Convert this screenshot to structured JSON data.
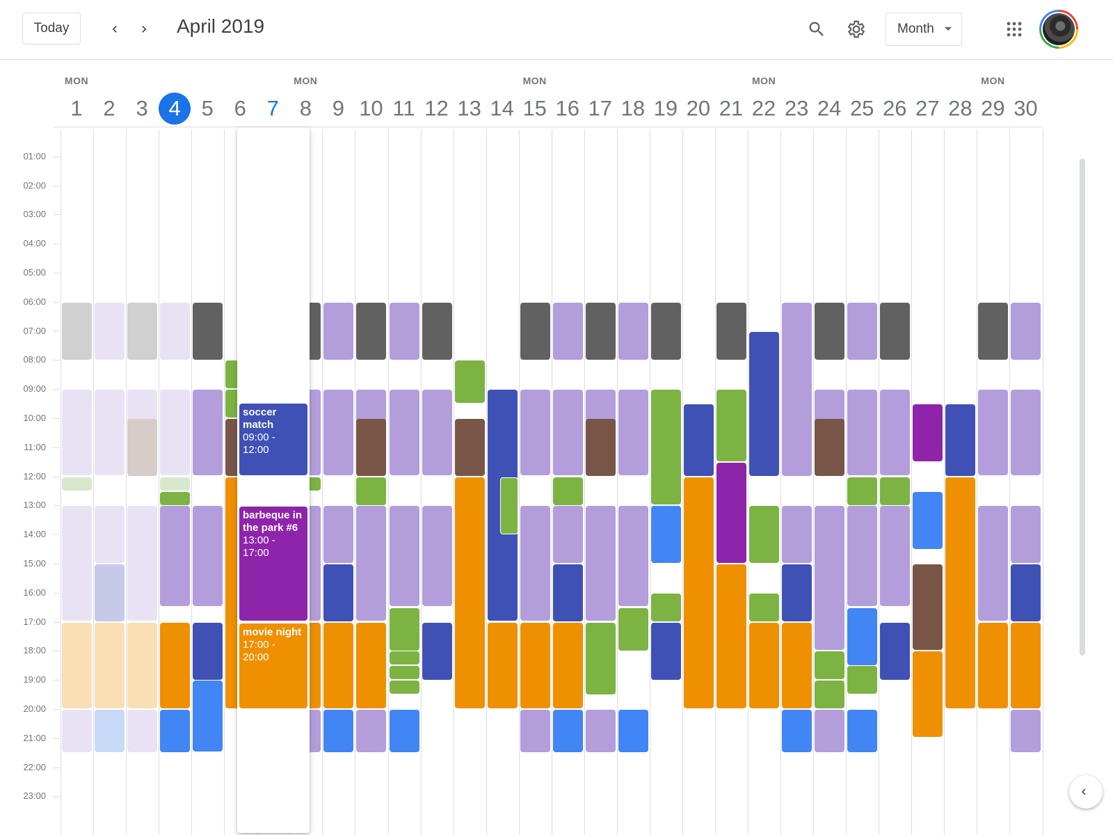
{
  "toolbar": {
    "today_label": "Today",
    "title": "April 2019",
    "view_label": "Month",
    "icons": {
      "prev": "chevron-left-icon",
      "next": "chevron-right-icon",
      "search": "search-icon",
      "settings": "gear-icon",
      "apps": "apps-grid-icon",
      "view_caret": "caret-down-icon",
      "collapse": "chevron-left-icon"
    }
  },
  "colors": {
    "accent": "#1a73e8",
    "lavender": "#b39ddb",
    "graphite": "#616161",
    "sage": "#7cb342",
    "tangerine": "#ef9000",
    "blueberry": "#3f51b5",
    "peacock": "#4285f4",
    "grape": "#8e24aa",
    "cocoa": "#795548"
  },
  "calendar": {
    "today": 4,
    "highlighted_day": 7,
    "expanded_day": 7,
    "days": [
      {
        "num": "1",
        "dow": "MON"
      },
      {
        "num": "2",
        "dow": ""
      },
      {
        "num": "3",
        "dow": ""
      },
      {
        "num": "4",
        "dow": ""
      },
      {
        "num": "5",
        "dow": ""
      },
      {
        "num": "6",
        "dow": ""
      },
      {
        "num": "7",
        "dow": ""
      },
      {
        "num": "8",
        "dow": "MON"
      },
      {
        "num": "9",
        "dow": ""
      },
      {
        "num": "10",
        "dow": ""
      },
      {
        "num": "11",
        "dow": ""
      },
      {
        "num": "12",
        "dow": ""
      },
      {
        "num": "13",
        "dow": ""
      },
      {
        "num": "14",
        "dow": ""
      },
      {
        "num": "15",
        "dow": "MON"
      },
      {
        "num": "16",
        "dow": ""
      },
      {
        "num": "17",
        "dow": ""
      },
      {
        "num": "18",
        "dow": ""
      },
      {
        "num": "19",
        "dow": ""
      },
      {
        "num": "20",
        "dow": ""
      },
      {
        "num": "21",
        "dow": ""
      },
      {
        "num": "22",
        "dow": "MON"
      },
      {
        "num": "23",
        "dow": ""
      },
      {
        "num": "24",
        "dow": ""
      },
      {
        "num": "25",
        "dow": ""
      },
      {
        "num": "26",
        "dow": ""
      },
      {
        "num": "27",
        "dow": ""
      },
      {
        "num": "28",
        "dow": ""
      },
      {
        "num": "29",
        "dow": "MON"
      },
      {
        "num": "30",
        "dow": ""
      }
    ],
    "hours": [
      "01:00",
      "02:00",
      "03:00",
      "04:00",
      "05:00",
      "06:00",
      "07:00",
      "08:00",
      "09:00",
      "10:00",
      "11:00",
      "12:00",
      "13:00",
      "14:00",
      "15:00",
      "16:00",
      "17:00",
      "18:00",
      "19:00",
      "20:00",
      "21:00",
      "22:00",
      "23:00"
    ],
    "expanded_events": [
      {
        "title": "soccer match",
        "time": "09:00 - 12:00",
        "start": 9,
        "end": 12,
        "color": "#3f51b5"
      },
      {
        "title": "barbeque in the park #6",
        "time": "13:00 - 17:00",
        "start": 13,
        "end": 17,
        "color": "#8e24aa"
      },
      {
        "title": "movie night",
        "time": "17:00 - 20:00",
        "start": 17,
        "end": 20,
        "color": "#ef9000"
      }
    ],
    "events": [
      [
        1,
        6,
        8,
        "#d0d0d0"
      ],
      [
        1,
        9,
        12,
        "#e8e2f4"
      ],
      [
        1,
        12,
        12.5,
        "#d8e8cc"
      ],
      [
        1,
        13,
        17,
        "#e8e2f4"
      ],
      [
        1,
        17,
        20,
        "#fadfb4"
      ],
      [
        1,
        20,
        21.5,
        "#e8e2f4"
      ],
      [
        2,
        6,
        8,
        "#e8e2f4"
      ],
      [
        2,
        9,
        12,
        "#e8e2f4"
      ],
      [
        2,
        13,
        15,
        "#e8e2f4"
      ],
      [
        2,
        15,
        17,
        "#c5cae9"
      ],
      [
        2,
        17,
        20,
        "#fadfb4"
      ],
      [
        2,
        20,
        21.5,
        "#c9d9f8"
      ],
      [
        3,
        6,
        8,
        "#d0d0d0"
      ],
      [
        3,
        9,
        10.5,
        "#e8e2f4"
      ],
      [
        3,
        10,
        12,
        "#d7ccc8"
      ],
      [
        3,
        13,
        17,
        "#e8e2f4"
      ],
      [
        3,
        17,
        20,
        "#fadfb4"
      ],
      [
        3,
        20,
        21.5,
        "#e8e2f4"
      ],
      [
        4,
        6,
        8,
        "#e8e2f4"
      ],
      [
        4,
        9,
        12,
        "#e8e2f4"
      ],
      [
        4,
        12,
        12.5,
        "#d8e8cc"
      ],
      [
        4,
        12.5,
        13,
        "#7cb342"
      ],
      [
        4,
        13,
        16.5,
        "#b39ddb"
      ],
      [
        4,
        17,
        20,
        "#ef9000"
      ],
      [
        4,
        20,
        21.5,
        "#4285f4"
      ],
      [
        5,
        6,
        8,
        "#616161"
      ],
      [
        5,
        9,
        12,
        "#b39ddb"
      ],
      [
        5,
        13,
        16.5,
        "#b39ddb"
      ],
      [
        5,
        17,
        19,
        "#3f51b5"
      ],
      [
        5,
        19,
        21.5,
        "#4285f4"
      ],
      [
        6,
        8,
        9,
        "#7cb342"
      ],
      [
        6,
        9,
        10,
        "#7cb342"
      ],
      [
        6,
        10,
        12,
        "#795548"
      ],
      [
        6,
        12,
        20,
        "#ef9000"
      ],
      [
        8,
        6,
        8,
        "#616161"
      ],
      [
        8,
        9,
        12,
        "#b39ddb"
      ],
      [
        8,
        12,
        12.5,
        "#7cb342"
      ],
      [
        8,
        13,
        17,
        "#b39ddb"
      ],
      [
        8,
        17,
        20,
        "#ef9000"
      ],
      [
        8,
        20,
        21.5,
        "#b39ddb"
      ],
      [
        9,
        6,
        8,
        "#b39ddb"
      ],
      [
        9,
        9,
        12,
        "#b39ddb"
      ],
      [
        9,
        13,
        15,
        "#b39ddb"
      ],
      [
        9,
        15,
        17,
        "#3f51b5"
      ],
      [
        9,
        17,
        20,
        "#ef9000"
      ],
      [
        9,
        20,
        21.5,
        "#4285f4"
      ],
      [
        10,
        6,
        8,
        "#616161"
      ],
      [
        10,
        9,
        10.5,
        "#b39ddb"
      ],
      [
        10,
        10,
        12,
        "#795548"
      ],
      [
        10,
        12,
        13,
        "#7cb342"
      ],
      [
        10,
        13,
        17,
        "#b39ddb"
      ],
      [
        10,
        17,
        20,
        "#ef9000"
      ],
      [
        10,
        20,
        21.5,
        "#b39ddb"
      ],
      [
        11,
        6,
        8,
        "#b39ddb"
      ],
      [
        11,
        9,
        12,
        "#b39ddb"
      ],
      [
        11,
        13,
        16.5,
        "#b39ddb"
      ],
      [
        11,
        16.5,
        18,
        "#7cb342"
      ],
      [
        11,
        18,
        18.5,
        "#7cb342"
      ],
      [
        11,
        18.5,
        19,
        "#7cb342"
      ],
      [
        11,
        19,
        19.5,
        "#7cb342"
      ],
      [
        11,
        20,
        21.5,
        "#4285f4"
      ],
      [
        12,
        6,
        8,
        "#616161"
      ],
      [
        12,
        9,
        12,
        "#b39ddb"
      ],
      [
        12,
        13,
        16.5,
        "#b39ddb"
      ],
      [
        12,
        17,
        19,
        "#3f51b5"
      ],
      [
        13,
        8,
        9.5,
        "#7cb342"
      ],
      [
        13,
        10,
        12,
        "#795548"
      ],
      [
        13,
        12,
        20,
        "#ef9000"
      ],
      [
        14,
        9,
        17,
        "#3f51b5"
      ],
      [
        14,
        17,
        20,
        "#ef9000"
      ],
      [
        15,
        6,
        8,
        "#616161"
      ],
      [
        15,
        9,
        12,
        "#b39ddb"
      ],
      [
        15,
        13,
        17,
        "#b39ddb"
      ],
      [
        15,
        17,
        20,
        "#ef9000"
      ],
      [
        15,
        20,
        21.5,
        "#b39ddb"
      ],
      [
        16,
        6,
        8,
        "#b39ddb"
      ],
      [
        16,
        9,
        12,
        "#b39ddb"
      ],
      [
        16,
        12,
        13,
        "#7cb342"
      ],
      [
        16,
        13,
        15,
        "#b39ddb"
      ],
      [
        16,
        15,
        17,
        "#3f51b5"
      ],
      [
        16,
        17,
        20,
        "#ef9000"
      ],
      [
        16,
        20,
        21.5,
        "#4285f4"
      ],
      [
        17,
        6,
        8,
        "#616161"
      ],
      [
        17,
        9,
        10.5,
        "#b39ddb"
      ],
      [
        17,
        10,
        12,
        "#795548"
      ],
      [
        17,
        13,
        17,
        "#b39ddb"
      ],
      [
        17,
        17,
        19.5,
        "#7cb342"
      ],
      [
        17,
        20,
        21.5,
        "#b39ddb"
      ],
      [
        18,
        6,
        8,
        "#b39ddb"
      ],
      [
        18,
        9,
        12,
        "#b39ddb"
      ],
      [
        18,
        13,
        16.5,
        "#b39ddb"
      ],
      [
        18,
        16.5,
        18,
        "#7cb342"
      ],
      [
        18,
        20,
        21.5,
        "#4285f4"
      ],
      [
        19,
        6,
        8,
        "#616161"
      ],
      [
        19,
        9,
        13,
        "#7cb342"
      ],
      [
        19,
        13,
        15,
        "#4285f4"
      ],
      [
        19,
        16,
        17,
        "#7cb342"
      ],
      [
        19,
        17,
        19,
        "#3f51b5"
      ],
      [
        20,
        9.5,
        12,
        "#3f51b5"
      ],
      [
        20,
        12,
        20,
        "#ef9000"
      ],
      [
        21,
        6,
        8,
        "#616161"
      ],
      [
        21,
        9,
        11.5,
        "#7cb342"
      ],
      [
        21,
        11.5,
        15,
        "#8e24aa"
      ],
      [
        21,
        15,
        20,
        "#ef9000"
      ],
      [
        22,
        7,
        12,
        "#3f51b5"
      ],
      [
        22,
        13,
        15,
        "#7cb342"
      ],
      [
        22,
        16,
        17,
        "#7cb342"
      ],
      [
        22,
        17,
        20,
        "#ef9000"
      ],
      [
        23,
        6,
        12,
        "#b39ddb"
      ],
      [
        23,
        13,
        15,
        "#b39ddb"
      ],
      [
        23,
        15,
        17,
        "#3f51b5"
      ],
      [
        23,
        17,
        20,
        "#ef9000"
      ],
      [
        23,
        20,
        21.5,
        "#4285f4"
      ],
      [
        24,
        6,
        8,
        "#616161"
      ],
      [
        24,
        9,
        10.5,
        "#b39ddb"
      ],
      [
        24,
        10,
        12,
        "#795548"
      ],
      [
        24,
        13,
        18,
        "#b39ddb"
      ],
      [
        24,
        18,
        19,
        "#7cb342"
      ],
      [
        24,
        19,
        20,
        "#7cb342"
      ],
      [
        24,
        20,
        21.5,
        "#b39ddb"
      ],
      [
        25,
        6,
        8,
        "#b39ddb"
      ],
      [
        25,
        9,
        12,
        "#b39ddb"
      ],
      [
        25,
        12,
        13,
        "#7cb342"
      ],
      [
        25,
        13,
        16.5,
        "#b39ddb"
      ],
      [
        25,
        16.5,
        18.5,
        "#4285f4"
      ],
      [
        25,
        18.5,
        19.5,
        "#7cb342"
      ],
      [
        25,
        20,
        21.5,
        "#4285f4"
      ],
      [
        26,
        6,
        8,
        "#616161"
      ],
      [
        26,
        9,
        12,
        "#b39ddb"
      ],
      [
        26,
        12,
        13,
        "#7cb342"
      ],
      [
        26,
        13,
        16.5,
        "#b39ddb"
      ],
      [
        26,
        17,
        19,
        "#3f51b5"
      ],
      [
        27,
        9.5,
        11.5,
        "#8e24aa"
      ],
      [
        27,
        12.5,
        14.5,
        "#4285f4"
      ],
      [
        27,
        15,
        18,
        "#795548"
      ],
      [
        27,
        18,
        21,
        "#ef9000"
      ],
      [
        28,
        9.5,
        12,
        "#3f51b5"
      ],
      [
        28,
        12,
        20,
        "#ef9000"
      ],
      [
        29,
        6,
        8,
        "#616161"
      ],
      [
        29,
        9,
        12,
        "#b39ddb"
      ],
      [
        29,
        13,
        17,
        "#b39ddb"
      ],
      [
        29,
        17,
        20,
        "#ef9000"
      ],
      [
        30,
        6,
        8,
        "#b39ddb"
      ],
      [
        30,
        9,
        12,
        "#b39ddb"
      ],
      [
        30,
        13,
        15,
        "#b39ddb"
      ],
      [
        30,
        15,
        17,
        "#3f51b5"
      ],
      [
        30,
        17,
        20,
        "#ef9000"
      ],
      [
        30,
        20,
        21.5,
        "#b39ddb"
      ]
    ],
    "outlined_events": [
      [
        14,
        12,
        14,
        "#7cb342"
      ]
    ]
  }
}
